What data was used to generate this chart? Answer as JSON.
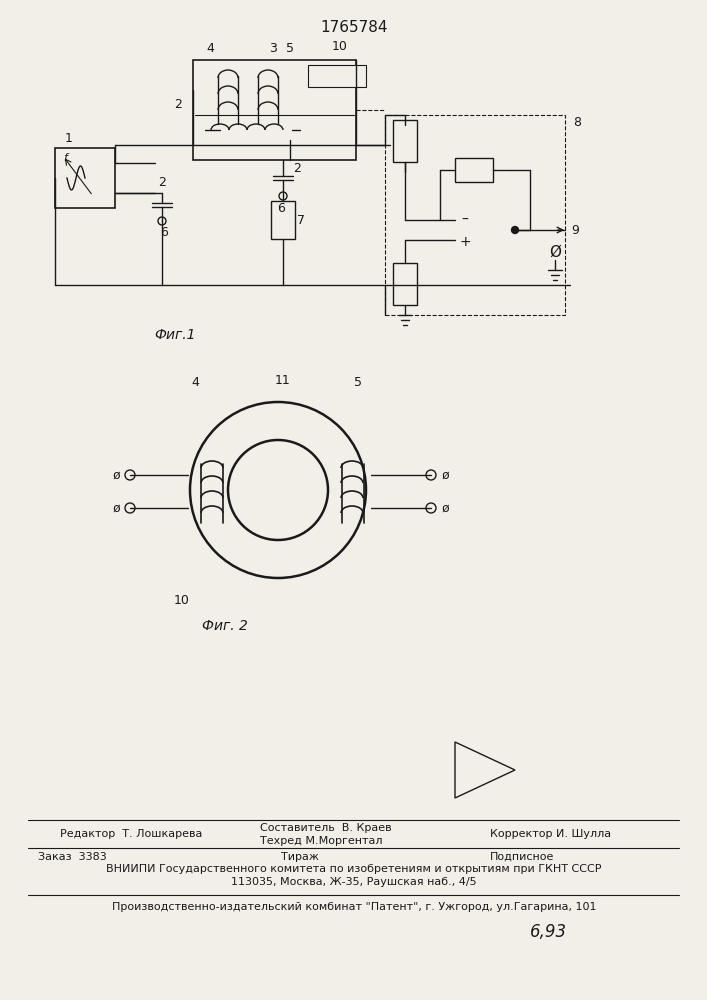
{
  "title": "1765784",
  "bg_color": "#f2efe9",
  "line_color": "#1a1a1a",
  "fig1_label": "Фиг.1",
  "fig2_label": "Фиг. 2"
}
